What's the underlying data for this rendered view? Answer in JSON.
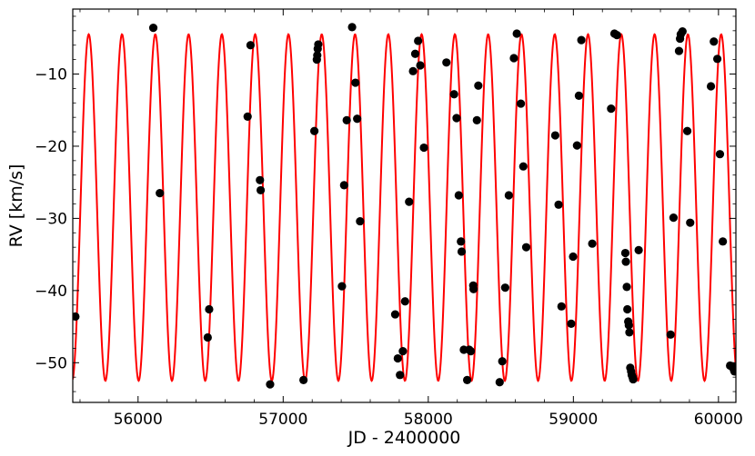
{
  "chart_data": {
    "type": "scatter",
    "title": "",
    "xlabel": "JD - 2400000",
    "ylabel": "RV [km/s]",
    "xlim": [
      55550,
      60120
    ],
    "ylim": [
      -55.5,
      -1.0
    ],
    "xticks": [
      56000,
      57000,
      58000,
      59000,
      60000
    ],
    "yticks": [
      -50,
      -40,
      -30,
      -20,
      -10
    ],
    "grid": false,
    "legend": "none",
    "ticks_direction": "in",
    "colors": {
      "model": "#ff0000",
      "points": "#000000"
    },
    "series": [
      {
        "type": "line",
        "model": {
          "period_days": 229.4,
          "gamma": -28.5,
          "amplitude": 24.0,
          "epoch_max": 55660
        }
      },
      {
        "type": "scatter",
        "points": [
          [
            55568,
            -43.6
          ],
          [
            56105,
            -3.6
          ],
          [
            56150,
            -26.5
          ],
          [
            56480,
            -46.5
          ],
          [
            56490,
            -42.6
          ],
          [
            56755,
            -15.9
          ],
          [
            56775,
            -6.0
          ],
          [
            56840,
            -24.7
          ],
          [
            56845,
            -26.1
          ],
          [
            56910,
            -53.0
          ],
          [
            57140,
            -52.4
          ],
          [
            57215,
            -17.9
          ],
          [
            57232,
            -8.0
          ],
          [
            57235,
            -7.4
          ],
          [
            57238,
            -6.5
          ],
          [
            57242,
            -5.9
          ],
          [
            57405,
            -39.4
          ],
          [
            57420,
            -25.4
          ],
          [
            57438,
            -16.4
          ],
          [
            57475,
            -3.5
          ],
          [
            57498,
            -11.2
          ],
          [
            57510,
            -16.2
          ],
          [
            57530,
            -30.4
          ],
          [
            57772,
            -43.3
          ],
          [
            57790,
            -49.4
          ],
          [
            57805,
            -51.7
          ],
          [
            57825,
            -48.4
          ],
          [
            57840,
            -41.5
          ],
          [
            57868,
            -27.7
          ],
          [
            57895,
            -9.6
          ],
          [
            57910,
            -7.2
          ],
          [
            57930,
            -5.4
          ],
          [
            57945,
            -8.8
          ],
          [
            57970,
            -20.2
          ],
          [
            58125,
            -8.4
          ],
          [
            58178,
            -12.8
          ],
          [
            58195,
            -16.1
          ],
          [
            58210,
            -26.8
          ],
          [
            58225,
            -33.2
          ],
          [
            58230,
            -34.6
          ],
          [
            58245,
            -48.2
          ],
          [
            58268,
            -52.4
          ],
          [
            58282,
            -48.2
          ],
          [
            58293,
            -48.4
          ],
          [
            58310,
            -39.3
          ],
          [
            58312,
            -39.8
          ],
          [
            58335,
            -16.4
          ],
          [
            58345,
            -11.6
          ],
          [
            58492,
            -52.7
          ],
          [
            58510,
            -49.8
          ],
          [
            58530,
            -39.6
          ],
          [
            58555,
            -26.8
          ],
          [
            58590,
            -7.8
          ],
          [
            58610,
            -4.4
          ],
          [
            58638,
            -14.1
          ],
          [
            58655,
            -22.8
          ],
          [
            58675,
            -34.0
          ],
          [
            58875,
            -18.5
          ],
          [
            58898,
            -28.1
          ],
          [
            58918,
            -42.2
          ],
          [
            58985,
            -44.6
          ],
          [
            58998,
            -35.3
          ],
          [
            59025,
            -19.9
          ],
          [
            59038,
            -13.0
          ],
          [
            59055,
            -5.3
          ],
          [
            59130,
            -33.5
          ],
          [
            59260,
            -14.8
          ],
          [
            59283,
            -4.4
          ],
          [
            59300,
            -4.6
          ],
          [
            59358,
            -34.8
          ],
          [
            59362,
            -36.0
          ],
          [
            59368,
            -39.5
          ],
          [
            59372,
            -42.6
          ],
          [
            59378,
            -44.3
          ],
          [
            59382,
            -44.8
          ],
          [
            59386,
            -45.8
          ],
          [
            59392,
            -50.7
          ],
          [
            59398,
            -51.2
          ],
          [
            59402,
            -51.7
          ],
          [
            59408,
            -52.0
          ],
          [
            59412,
            -52.3
          ],
          [
            59450,
            -34.4
          ],
          [
            59670,
            -46.1
          ],
          [
            59690,
            -29.9
          ],
          [
            59728,
            -6.8
          ],
          [
            59735,
            -5.1
          ],
          [
            59740,
            -4.5
          ],
          [
            59752,
            -4.1
          ],
          [
            59785,
            -17.9
          ],
          [
            59805,
            -30.6
          ],
          [
            59948,
            -11.7
          ],
          [
            59968,
            -5.5
          ],
          [
            59992,
            -7.9
          ],
          [
            60010,
            -21.1
          ],
          [
            60030,
            -33.2
          ],
          [
            60080,
            -50.4
          ],
          [
            60095,
            -50.5
          ],
          [
            60105,
            -50.9
          ],
          [
            60110,
            -51.2
          ]
        ]
      }
    ]
  }
}
